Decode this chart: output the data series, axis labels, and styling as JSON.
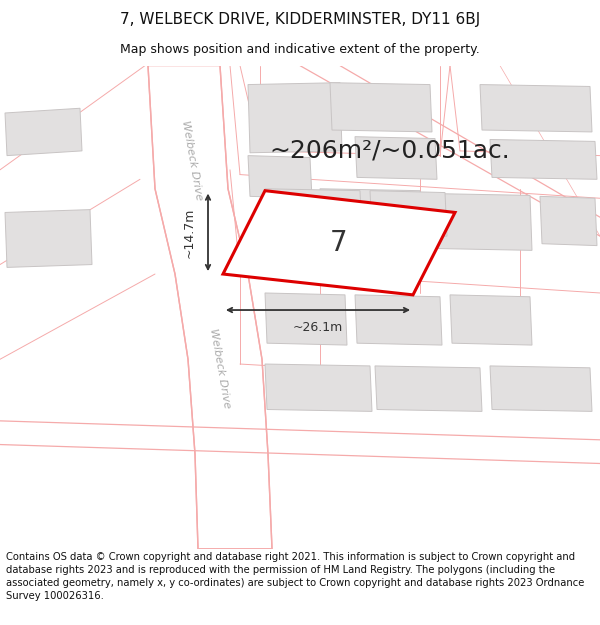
{
  "title": "7, WELBECK DRIVE, KIDDERMINSTER, DY11 6BJ",
  "subtitle": "Map shows position and indicative extent of the property.",
  "area_text": "~206m²/~0.051ac.",
  "width_label": "~26.1m",
  "height_label": "~14.7m",
  "property_number": "7",
  "footer": "Contains OS data © Crown copyright and database right 2021. This information is subject to Crown copyright and database rights 2023 and is reproduced with the permission of HM Land Registry. The polygons (including the associated geometry, namely x, y co-ordinates) are subject to Crown copyright and database rights 2023 Ordnance Survey 100026316.",
  "map_bg": "#f0eeee",
  "building_fill": "#e2e0e0",
  "building_edge": "#c8c4c4",
  "road_fill": "#ffffff",
  "road_outline": "#f5aaaa",
  "property_fill": "#ffffff",
  "property_edge": "#dd0000",
  "dim_color": "#333333",
  "road_label_color": "#aaaaaa",
  "title_fontsize": 11,
  "subtitle_fontsize": 9,
  "area_fontsize": 18,
  "footer_fontsize": 7.2,
  "number_fontsize": 20
}
